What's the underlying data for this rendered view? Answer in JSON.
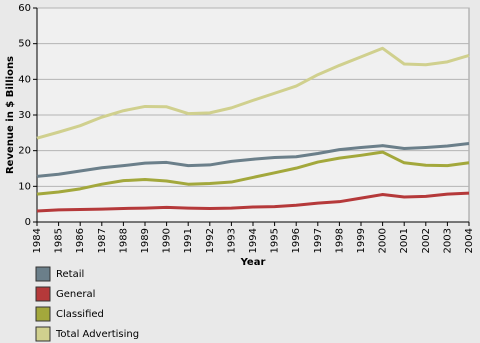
{
  "chart_data": {
    "type": "line",
    "y_label": "Revenue in $ Billions",
    "x_label": "Year",
    "categories": [
      "1984",
      "1985",
      "1986",
      "1987",
      "1988",
      "1989",
      "1990",
      "1991",
      "1992",
      "1993",
      "1994",
      "1995",
      "1996",
      "1997",
      "1998",
      "1999",
      "2000",
      "2001",
      "2002",
      "2003",
      "2004"
    ],
    "series": [
      {
        "name": "Retail",
        "color": "#6b7f8a",
        "values": [
          12.8,
          13.4,
          14.3,
          15.2,
          15.8,
          16.5,
          16.7,
          15.8,
          16.0,
          17.0,
          17.6,
          18.1,
          18.3,
          19.2,
          20.3,
          20.9,
          21.4,
          20.6,
          20.9,
          21.3,
          22.0
        ]
      },
      {
        "name": "General",
        "color": "#b5393a",
        "values": [
          3.1,
          3.4,
          3.5,
          3.6,
          3.8,
          3.9,
          4.1,
          3.9,
          3.8,
          3.9,
          4.2,
          4.3,
          4.7,
          5.3,
          5.7,
          6.7,
          7.7,
          7.0,
          7.2,
          7.8,
          8.1
        ]
      },
      {
        "name": "Classified",
        "color": "#a3a83c",
        "values": [
          7.8,
          8.4,
          9.3,
          10.6,
          11.6,
          11.9,
          11.5,
          10.6,
          10.8,
          11.2,
          12.5,
          13.8,
          15.1,
          16.8,
          17.9,
          18.7,
          19.6,
          16.6,
          15.9,
          15.8,
          16.6
        ]
      },
      {
        "name": "Total Advertising",
        "color": "#d0d08e",
        "values": [
          23.5,
          25.2,
          27.0,
          29.4,
          31.2,
          32.4,
          32.3,
          30.4,
          30.6,
          32.0,
          34.1,
          36.1,
          38.1,
          41.3,
          43.9,
          46.3,
          48.7,
          44.3,
          44.1,
          44.9,
          46.7
        ]
      }
    ],
    "ylim": [
      0,
      60
    ],
    "yticks": [
      0,
      10,
      20,
      30,
      40,
      50,
      60
    ],
    "grid": true
  }
}
